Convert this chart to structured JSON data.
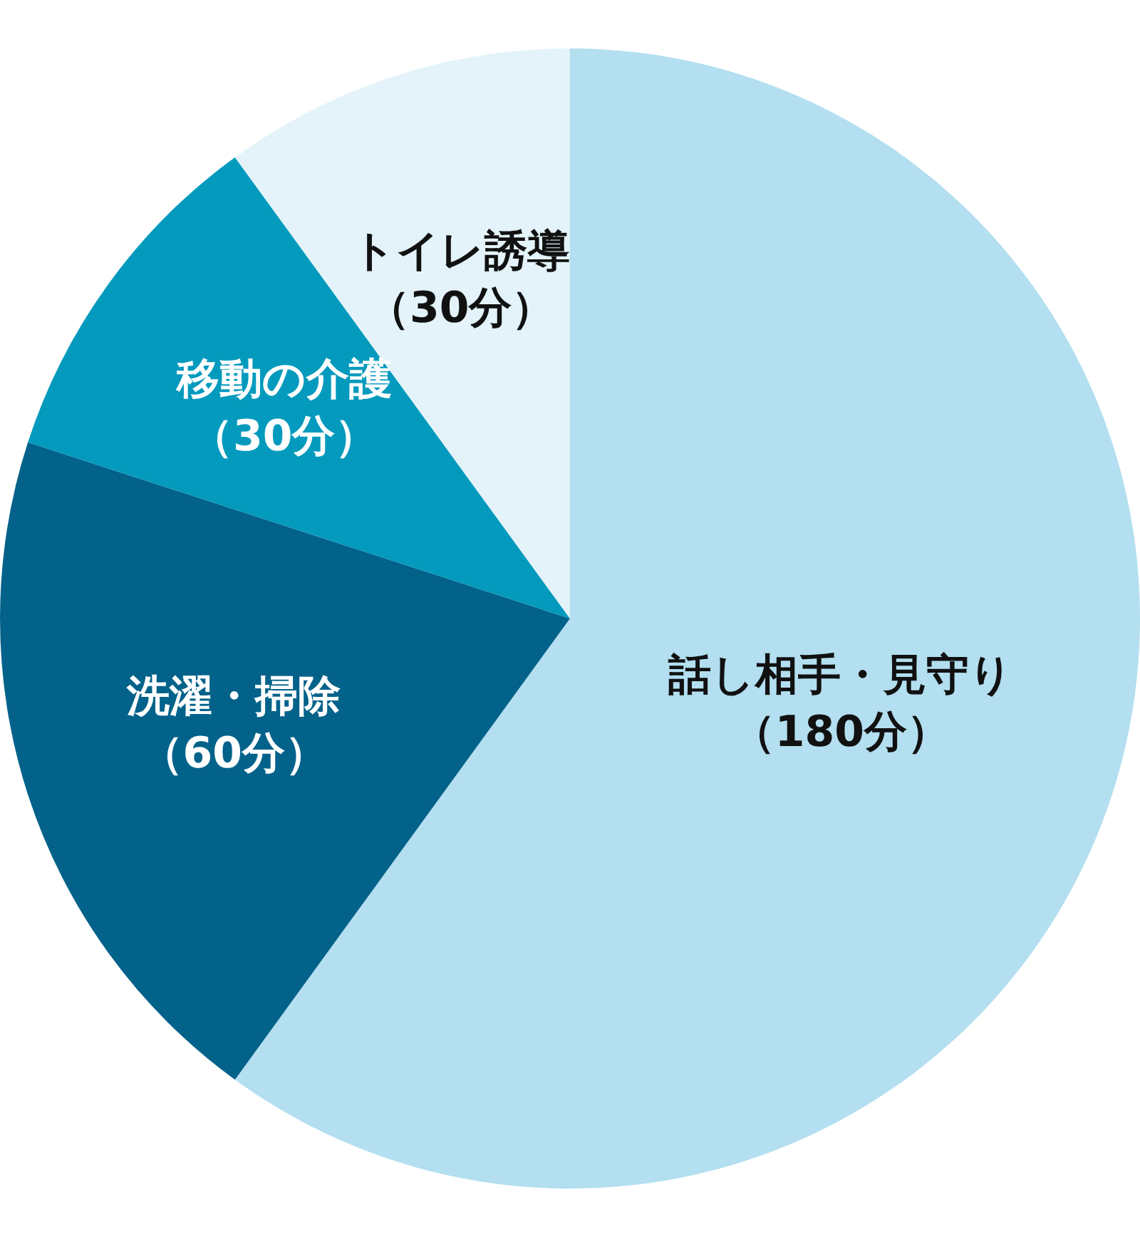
{
  "chart_data": {
    "type": "pie",
    "categories": [
      "話し相手・見守り",
      "洗濯・掃除",
      "移動の介護",
      "トイレ誘導"
    ],
    "values": [
      180,
      60,
      30,
      30
    ],
    "colors": [
      "#b3dff0",
      "#03628a",
      "#039abd",
      "#e3f3f9"
    ],
    "value_labels": [
      "（180分）",
      "（60分）",
      "（30分）",
      "（30分）"
    ],
    "legend": false
  }
}
